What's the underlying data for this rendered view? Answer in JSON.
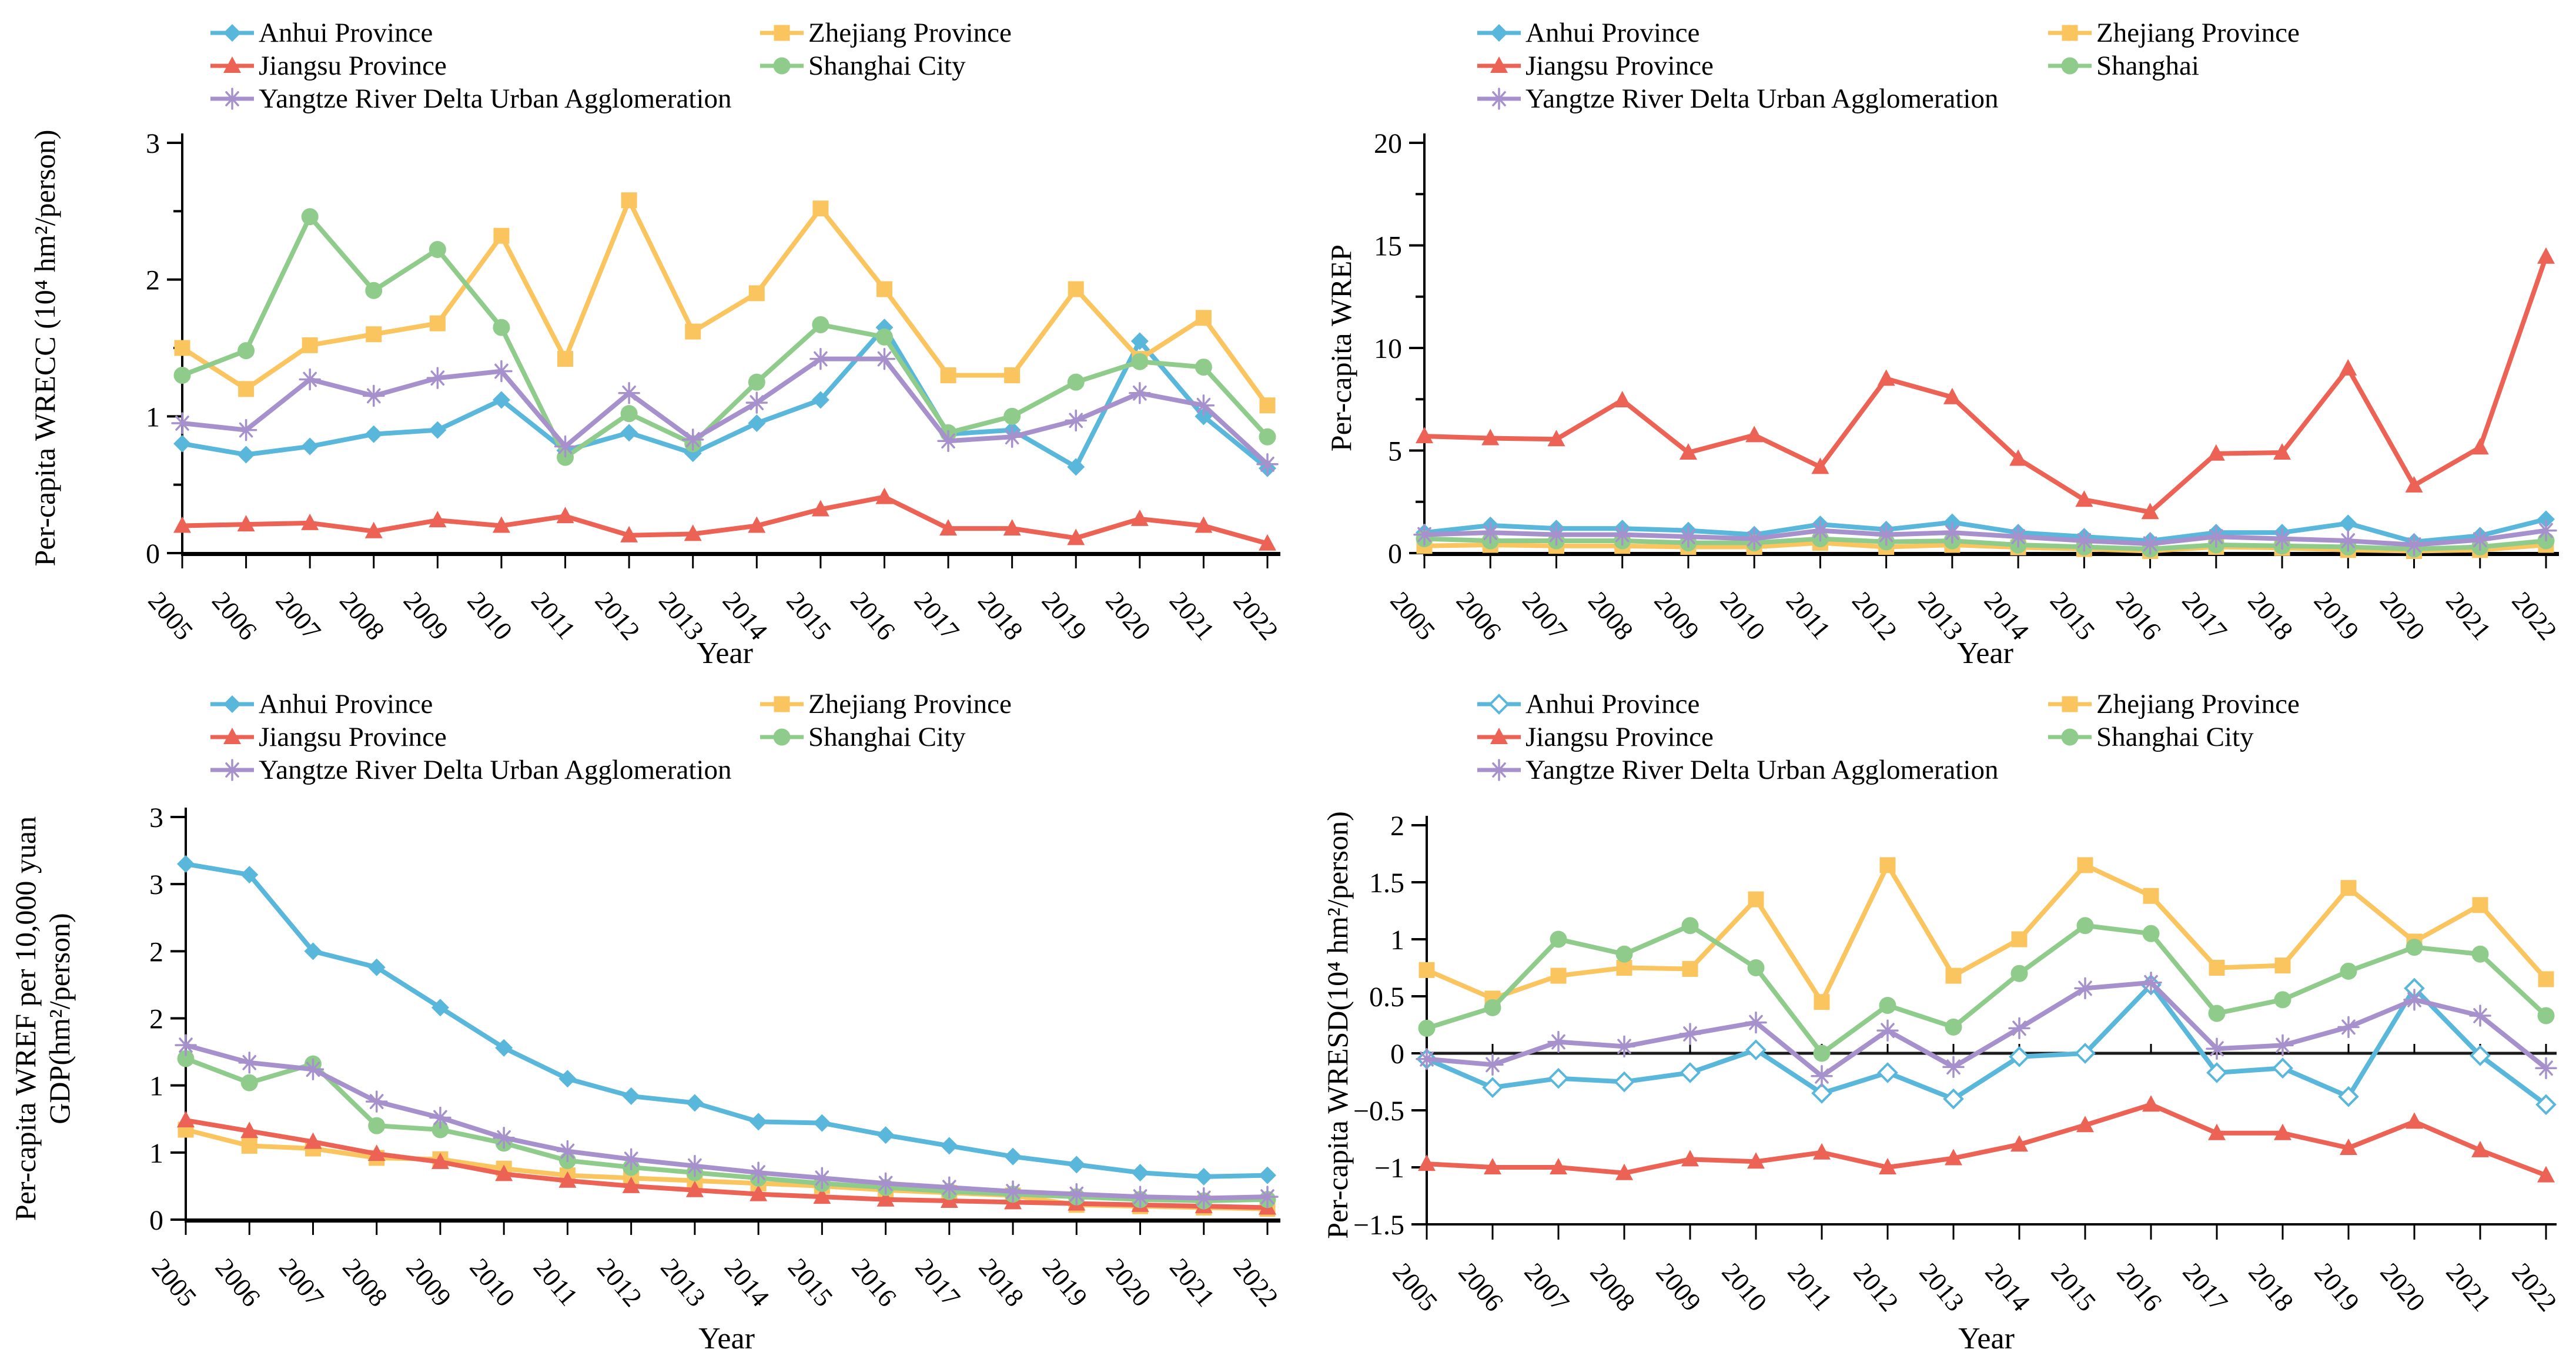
{
  "figure": {
    "description": "Four line charts of water-resources indicators for Yangtze River Delta regions, 2005-2022"
  },
  "palette": {
    "anhui": "#58B7DB",
    "zhejiang": "#FAC55F",
    "jiangsu": "#EC6355",
    "shanghai": "#8FCC8B",
    "yangtze": "#A791CC"
  },
  "chart_data": [
    {
      "type": "line",
      "position": "top-left",
      "xlabel": "Year",
      "ylabel_lines": [
        "Per-capita WRECC (10⁴ hm²/person)"
      ],
      "x": [
        "2005",
        "2006",
        "2007",
        "2008",
        "2009",
        "2010",
        "2011",
        "2012",
        "2013",
        "2014",
        "2015",
        "2016",
        "2017",
        "2018",
        "2019",
        "2020",
        "2021",
        "2022"
      ],
      "ylim": [
        0,
        3
      ],
      "yticks": {
        "values": [
          0,
          0.5,
          1,
          1.5,
          2,
          2.5,
          3
        ],
        "labels": [
          "0",
          "",
          "1",
          "",
          "2",
          "",
          "3"
        ]
      },
      "legend_position": "top",
      "grid": false,
      "series": [
        {
          "name": "Anhui Province",
          "color": "#58B7DB",
          "marker": "diamond",
          "values": [
            0.8,
            0.72,
            0.78,
            0.87,
            0.9,
            1.12,
            0.75,
            0.88,
            0.73,
            0.95,
            1.12,
            1.65,
            0.87,
            0.9,
            0.63,
            1.55,
            1.0,
            0.62
          ]
        },
        {
          "name": "Zhejiang Province",
          "color": "#FAC55F",
          "marker": "square",
          "values": [
            1.5,
            1.2,
            1.52,
            1.6,
            1.68,
            2.32,
            1.42,
            2.58,
            1.62,
            1.9,
            2.52,
            1.93,
            1.3,
            1.3,
            1.93,
            1.42,
            1.72,
            1.08
          ]
        },
        {
          "name": "Jiangsu Province",
          "color": "#EC6355",
          "marker": "triangle",
          "values": [
            0.2,
            0.21,
            0.22,
            0.16,
            0.24,
            0.2,
            0.27,
            0.13,
            0.14,
            0.2,
            0.32,
            0.41,
            0.18,
            0.18,
            0.11,
            0.25,
            0.2,
            0.07
          ]
        },
        {
          "name": "Shanghai City",
          "color": "#8FCC8B",
          "marker": "circle",
          "values": [
            1.3,
            1.48,
            2.46,
            1.92,
            2.22,
            1.65,
            0.7,
            1.02,
            0.8,
            1.25,
            1.67,
            1.58,
            0.88,
            1.0,
            1.25,
            1.4,
            1.36,
            0.85
          ]
        },
        {
          "name": "Yangtze River Delta Urban Agglomeration",
          "color": "#A791CC",
          "marker": "asterisk",
          "values": [
            0.95,
            0.9,
            1.27,
            1.15,
            1.28,
            1.33,
            0.78,
            1.17,
            0.83,
            1.1,
            1.42,
            1.42,
            0.82,
            0.85,
            0.97,
            1.17,
            1.08,
            0.65
          ]
        }
      ]
    },
    {
      "type": "line",
      "position": "top-right",
      "xlabel": "Year",
      "ylabel_lines": [
        "Per-capita WREP"
      ],
      "x": [
        "2005",
        "2006",
        "2007",
        "2008",
        "2009",
        "2010",
        "2011",
        "2012",
        "2013",
        "2014",
        "2015",
        "2016",
        "2017",
        "2018",
        "2019",
        "2020",
        "2021",
        "2022"
      ],
      "ylim": [
        0,
        20
      ],
      "yticks": {
        "values": [
          0,
          2.5,
          5,
          7.5,
          10,
          12.5,
          15,
          17.5,
          20
        ],
        "labels": [
          "0",
          "",
          "5",
          "",
          "10",
          "",
          "15",
          "",
          "20"
        ]
      },
      "legend_position": "top",
      "grid": false,
      "series": [
        {
          "name": "Anhui Province",
          "color": "#58B7DB",
          "marker": "diamond",
          "values": [
            1.0,
            1.35,
            1.2,
            1.2,
            1.1,
            0.9,
            1.4,
            1.15,
            1.5,
            1.0,
            0.8,
            0.6,
            1.0,
            1.0,
            1.45,
            0.55,
            0.85,
            1.65
          ]
        },
        {
          "name": "Zhejiang Province",
          "color": "#FAC55F",
          "marker": "square",
          "values": [
            0.35,
            0.4,
            0.35,
            0.35,
            0.3,
            0.3,
            0.5,
            0.3,
            0.4,
            0.28,
            0.2,
            0.1,
            0.3,
            0.25,
            0.15,
            0.1,
            0.15,
            0.4
          ]
        },
        {
          "name": "Jiangsu Province",
          "color": "#EC6355",
          "marker": "triangle",
          "values": [
            5.7,
            5.6,
            5.55,
            7.45,
            4.9,
            5.75,
            4.2,
            8.5,
            7.6,
            4.6,
            2.6,
            2.0,
            4.85,
            4.9,
            9.0,
            3.3,
            5.15,
            14.45
          ]
        },
        {
          "name": "Shanghai",
          "color": "#8FCC8B",
          "marker": "circle",
          "values": [
            0.7,
            0.6,
            0.6,
            0.6,
            0.5,
            0.5,
            0.7,
            0.55,
            0.6,
            0.4,
            0.3,
            0.2,
            0.4,
            0.35,
            0.3,
            0.2,
            0.3,
            0.6
          ]
        },
        {
          "name": "Yangtze River Delta Urban Agglomeration",
          "color": "#A791CC",
          "marker": "asterisk",
          "values": [
            0.9,
            1.0,
            0.9,
            0.9,
            0.8,
            0.7,
            1.1,
            0.9,
            1.0,
            0.8,
            0.6,
            0.45,
            0.8,
            0.7,
            0.6,
            0.4,
            0.65,
            1.1
          ]
        }
      ]
    },
    {
      "type": "line",
      "position": "bottom-left",
      "xlabel": "Year",
      "ylabel_lines": [
        "Per-capita WREF per 10,000 yuan",
        "GDP(hm²/person)"
      ],
      "x": [
        "2005",
        "2006",
        "2007",
        "2008",
        "2009",
        "2010",
        "2011",
        "2012",
        "2013",
        "2014",
        "2015",
        "2016",
        "2017",
        "2018",
        "2019",
        "2020",
        "2021",
        "2022"
      ],
      "ylim": [
        0,
        3
      ],
      "yticks": {
        "values": [
          0,
          0.5,
          1,
          1.5,
          2,
          2.5,
          3
        ],
        "labels": [
          "0",
          "1",
          "1",
          "2",
          "2",
          "3",
          "3"
        ]
      },
      "legend_position": "top",
      "grid": false,
      "series": [
        {
          "name": "Anhui Province",
          "color": "#58B7DB",
          "marker": "diamond",
          "values": [
            2.65,
            2.57,
            2.0,
            1.88,
            1.58,
            1.28,
            1.05,
            0.92,
            0.87,
            0.73,
            0.72,
            0.63,
            0.55,
            0.47,
            0.41,
            0.35,
            0.32,
            0.33
          ]
        },
        {
          "name": "Zhejiang Province",
          "color": "#FAC55F",
          "marker": "square",
          "values": [
            0.67,
            0.55,
            0.53,
            0.46,
            0.45,
            0.38,
            0.33,
            0.31,
            0.29,
            0.27,
            0.25,
            0.22,
            0.2,
            0.18,
            0.11,
            0.1,
            0.09,
            0.08
          ]
        },
        {
          "name": "Jiangsu Province",
          "color": "#EC6355",
          "marker": "triangle",
          "values": [
            0.74,
            0.66,
            0.58,
            0.49,
            0.43,
            0.34,
            0.29,
            0.25,
            0.22,
            0.19,
            0.17,
            0.15,
            0.14,
            0.13,
            0.12,
            0.11,
            0.1,
            0.09
          ]
        },
        {
          "name": "Shanghai City",
          "color": "#8FCC8B",
          "marker": "circle",
          "values": [
            1.2,
            1.02,
            1.16,
            0.7,
            0.67,
            0.57,
            0.44,
            0.39,
            0.35,
            0.31,
            0.27,
            0.24,
            0.21,
            0.19,
            0.17,
            0.15,
            0.14,
            0.15
          ]
        },
        {
          "name": "Yangtze River Delta Urban Agglomeration",
          "color": "#A791CC",
          "marker": "asterisk",
          "values": [
            1.3,
            1.17,
            1.12,
            0.88,
            0.76,
            0.61,
            0.51,
            0.45,
            0.4,
            0.35,
            0.31,
            0.27,
            0.24,
            0.21,
            0.19,
            0.17,
            0.16,
            0.17
          ]
        }
      ]
    },
    {
      "type": "line",
      "position": "bottom-right",
      "xlabel": "Year",
      "ylabel_lines": [
        "Per-capita WRESD(10⁴ hm²/person)"
      ],
      "x": [
        "2005",
        "2006",
        "2007",
        "2008",
        "2009",
        "2010",
        "2011",
        "2012",
        "2013",
        "2014",
        "2015",
        "2016",
        "2017",
        "2018",
        "2019",
        "2020",
        "2021",
        "2022"
      ],
      "ylim": [
        -1.5,
        2
      ],
      "zero_line": true,
      "yticks": {
        "values": [
          -1.5,
          -1,
          -0.5,
          0,
          0.5,
          1,
          1.5,
          2
        ],
        "labels": [
          "−1.5",
          "−1",
          "−0.5",
          "0",
          "0.5",
          "1",
          "1.5",
          "2"
        ]
      },
      "legend_position": "top",
      "grid": false,
      "series": [
        {
          "name": "Anhui Province",
          "color": "#58B7DB",
          "marker": "diamond-open",
          "values": [
            -0.05,
            -0.3,
            -0.22,
            -0.25,
            -0.17,
            0.03,
            -0.35,
            -0.17,
            -0.4,
            -0.03,
            0.0,
            0.6,
            -0.17,
            -0.13,
            -0.38,
            0.57,
            -0.02,
            -0.45
          ]
        },
        {
          "name": "Zhejiang Province",
          "color": "#FAC55F",
          "marker": "square",
          "values": [
            0.73,
            0.48,
            0.68,
            0.75,
            0.74,
            1.35,
            0.45,
            1.65,
            0.68,
            1.0,
            1.65,
            1.38,
            0.75,
            0.77,
            1.45,
            0.98,
            1.3,
            0.65
          ]
        },
        {
          "name": "Jiangsu Province",
          "color": "#EC6355",
          "marker": "triangle",
          "values": [
            -0.97,
            -1.0,
            -1.0,
            -1.05,
            -0.93,
            -0.95,
            -0.87,
            -1.0,
            -0.92,
            -0.8,
            -0.63,
            -0.45,
            -0.7,
            -0.7,
            -0.83,
            -0.6,
            -0.85,
            -1.07
          ]
        },
        {
          "name": "Shanghai City",
          "color": "#8FCC8B",
          "marker": "circle",
          "values": [
            0.22,
            0.4,
            1.0,
            0.87,
            1.12,
            0.75,
            0.0,
            0.42,
            0.23,
            0.7,
            1.12,
            1.05,
            0.35,
            0.47,
            0.72,
            0.93,
            0.87,
            0.33
          ]
        },
        {
          "name": "Yangtze River Delta Urban Agglomeration",
          "color": "#A791CC",
          "marker": "asterisk",
          "values": [
            -0.05,
            -0.1,
            0.1,
            0.06,
            0.17,
            0.27,
            -0.2,
            0.2,
            -0.12,
            0.22,
            0.57,
            0.62,
            0.04,
            0.07,
            0.23,
            0.47,
            0.33,
            -0.13
          ]
        }
      ]
    }
  ]
}
